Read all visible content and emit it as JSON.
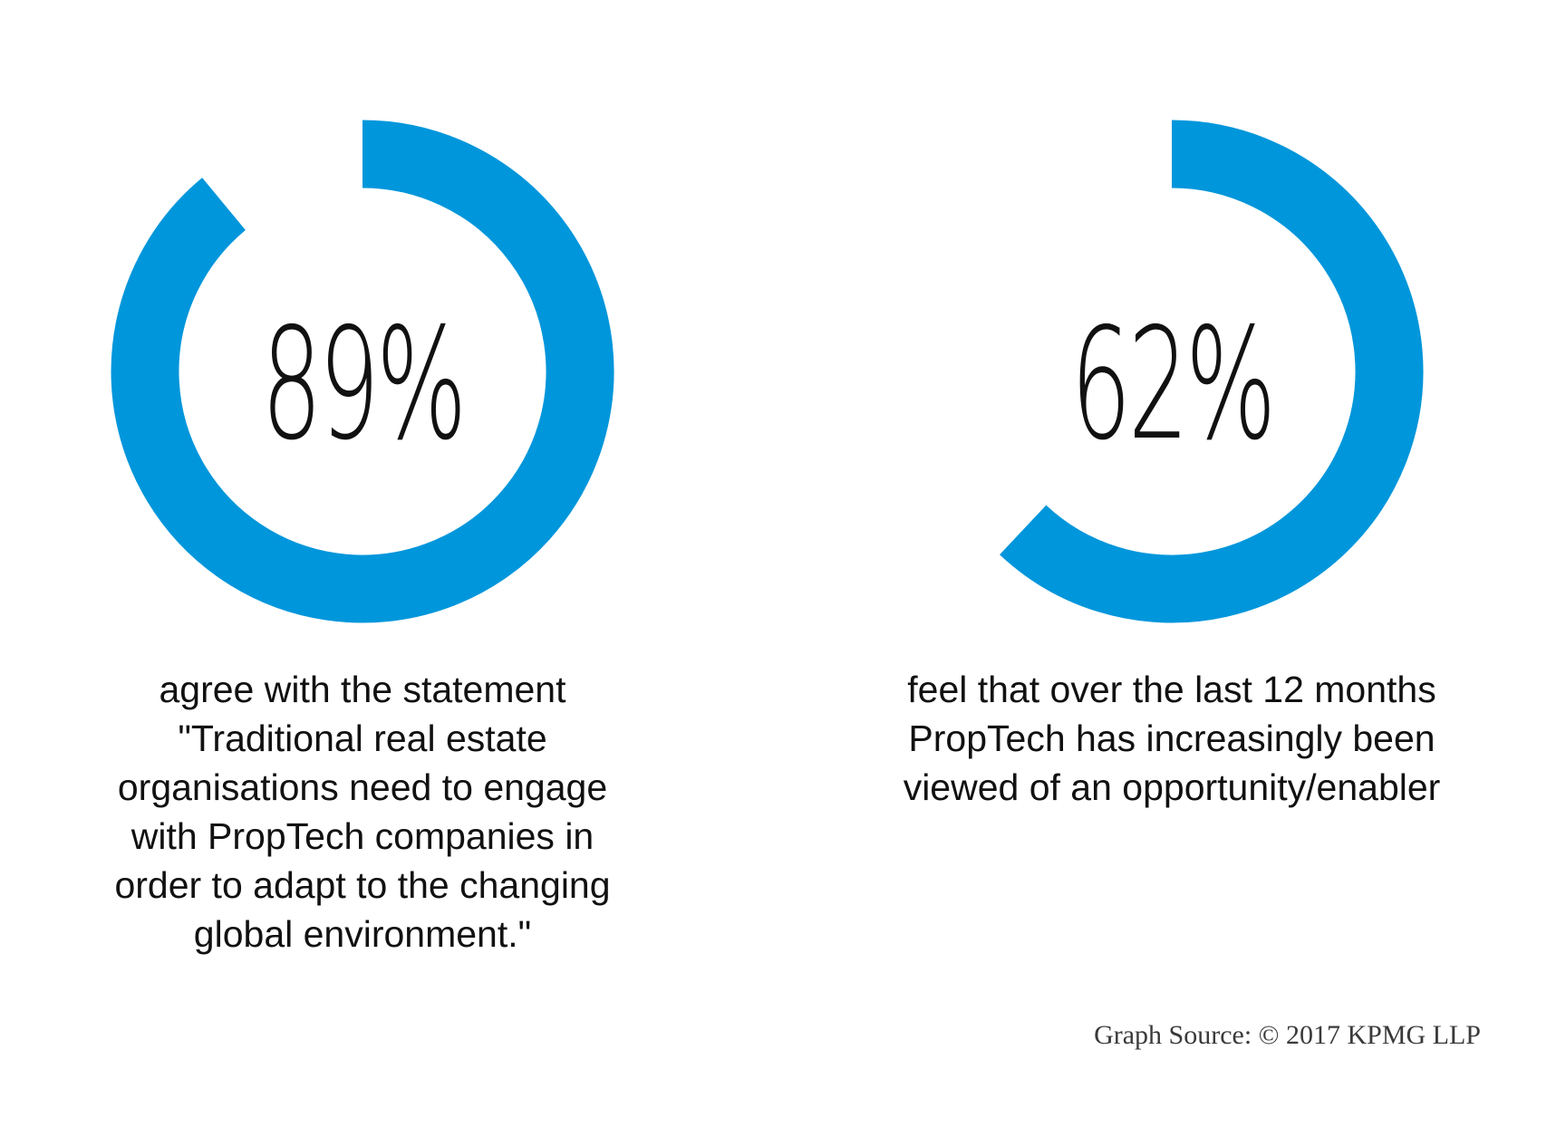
{
  "colors": {
    "ring": "#0096DB",
    "text": "#111111"
  },
  "chart_data": [
    {
      "type": "pie",
      "style": "donut",
      "value": 89,
      "unit": "%",
      "label": "89%",
      "caption_lines": [
        "agree with the statement",
        "\"Traditional real estate",
        "organisations need to engage",
        "with PropTech companies in",
        "order to adapt to the changing",
        "global environment.\""
      ]
    },
    {
      "type": "pie",
      "style": "donut",
      "value": 62,
      "unit": "%",
      "label": "62%",
      "caption_lines": [
        "feel that over the last 12 months",
        "PropTech has increasingly been",
        "viewed of an opportunity/enabler"
      ]
    }
  ],
  "source": "Graph Source: © 2017 KPMG LLP"
}
